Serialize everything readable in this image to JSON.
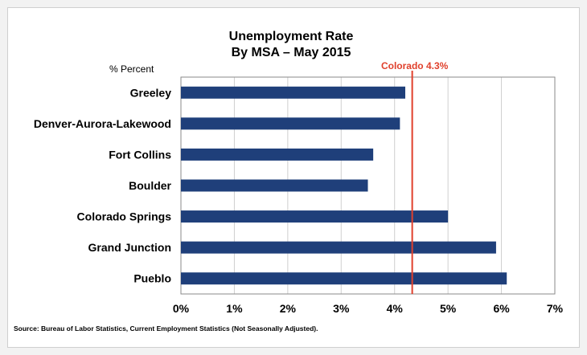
{
  "chart_data": {
    "type": "bar",
    "orientation": "horizontal",
    "title": "Unemployment Rate",
    "subtitle": "By MSA – May 2015",
    "ylabel": "% Percent",
    "categories": [
      "Greeley",
      "Denver-Aurora-Lakewood",
      "Fort Collins",
      "Boulder",
      "Colorado Springs",
      "Grand Junction",
      "Pueblo"
    ],
    "values": [
      4.2,
      4.1,
      3.6,
      3.5,
      5.0,
      5.9,
      6.1
    ],
    "xlim": [
      0,
      7
    ],
    "x_ticks": [
      0,
      1,
      2,
      3,
      4,
      5,
      6,
      7
    ],
    "x_tick_labels": [
      "0%",
      "1%",
      "2%",
      "3%",
      "4%",
      "5%",
      "6%",
      "7%"
    ],
    "grid": true,
    "reference_line": {
      "value": 4.33,
      "label": "Colorado 4.3%"
    },
    "source": "Source: Bureau of Labor Statistics, Current Employment Statistics (Not Seasonally Adjusted).",
    "colors": {
      "bar": "#1f3f7a",
      "reference": "#e0402c",
      "grid": "#cfcfcf",
      "text": "#000000"
    }
  }
}
